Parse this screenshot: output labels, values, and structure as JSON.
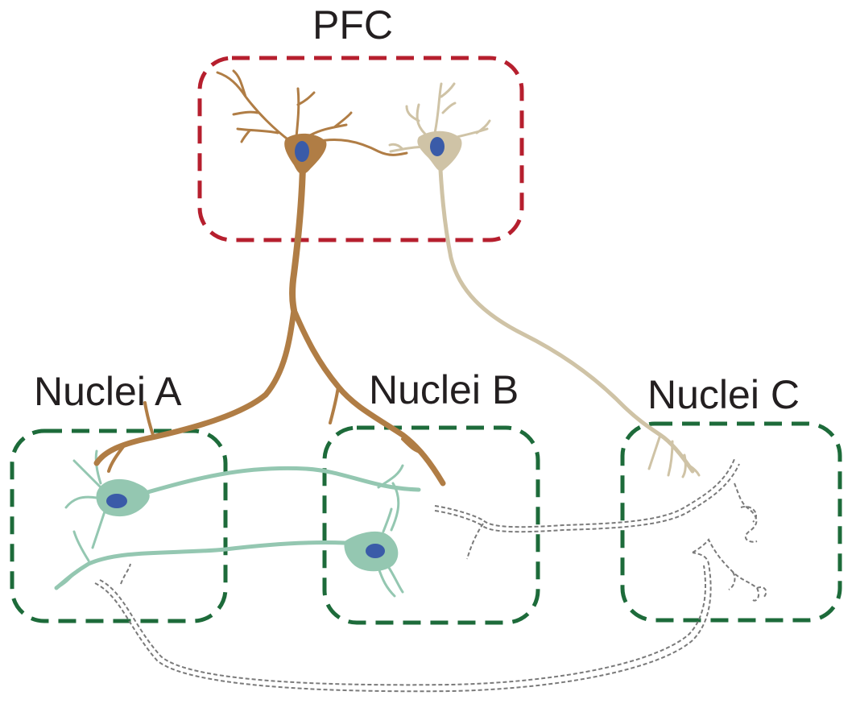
{
  "regions": {
    "pfc": {
      "label": "PFC",
      "color": "#b61f2e"
    },
    "nuclei_a": {
      "label": "Nuclei A",
      "color": "#1d6b3a"
    },
    "nuclei_b": {
      "label": "Nuclei B",
      "color": "#1d6b3a"
    },
    "nuclei_c": {
      "label": "Nuclei C",
      "color": "#1d6b3a"
    }
  },
  "neurons": {
    "pfc_pyramidal_dark": {
      "color": "#b07d45",
      "nucleus_color": "#3a5ba8"
    },
    "pfc_pyramidal_light": {
      "color": "#cfc3a6",
      "nucleus_color": "#3a5ba8"
    },
    "nuclei_cells": {
      "color": "#94c7b1",
      "nucleus_color": "#3a5ba8"
    },
    "projection_paths": {
      "color": "#7a7a7a",
      "style": "dashed double line"
    }
  }
}
